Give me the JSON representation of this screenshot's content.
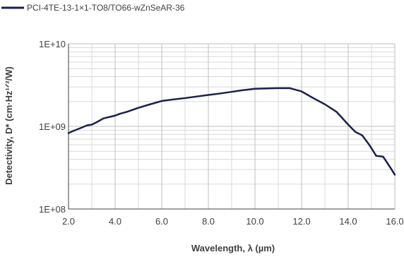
{
  "chart_data": {
    "type": "line",
    "title": "",
    "xlabel": "Wavelength, λ (µm)",
    "ylabel": "Detectivity, D* (cm·Hz¹ᐟ²/W)",
    "xlim": [
      2.0,
      16.0
    ],
    "ylim": [
      100000000.0,
      10000000000.0
    ],
    "yscale": "log",
    "grid": true,
    "legend_position": "top-left",
    "x_ticks": [
      "2.0",
      "4.0",
      "6.0",
      "8.0",
      "10.0",
      "12.0",
      "14.0",
      "16.0"
    ],
    "y_ticks": [
      "1E+08",
      "1E+09",
      "1E+10"
    ],
    "series": [
      {
        "name": "PCI-4TE-13-1×1-TO8/TO66-wZnSeAR-36",
        "color": "#1b1f4e",
        "x": [
          2.0,
          2.2,
          2.5,
          2.8,
          3.0,
          3.2,
          3.5,
          4.0,
          4.2,
          4.5,
          5.0,
          5.5,
          6.0,
          6.5,
          7.0,
          7.5,
          8.0,
          8.5,
          9.0,
          9.5,
          10.0,
          10.5,
          11.0,
          11.5,
          12.0,
          12.5,
          13.0,
          13.5,
          14.0,
          14.3,
          14.6,
          14.9,
          15.2,
          15.5,
          15.8,
          16.0
        ],
        "y": [
          830000000.0,
          880000000.0,
          950000000.0,
          1030000000.0,
          1050000000.0,
          1120000000.0,
          1250000000.0,
          1350000000.0,
          1420000000.0,
          1500000000.0,
          1680000000.0,
          1850000000.0,
          2030000000.0,
          2120000000.0,
          2200000000.0,
          2300000000.0,
          2400000000.0,
          2500000000.0,
          2620000000.0,
          2750000000.0,
          2850000000.0,
          2880000000.0,
          2900000000.0,
          2900000000.0,
          2650000000.0,
          2200000000.0,
          1850000000.0,
          1500000000.0,
          1050000000.0,
          860000000.0,
          780000000.0,
          600000000.0,
          440000000.0,
          430000000.0,
          320000000.0,
          260000000.0
        ]
      }
    ]
  }
}
